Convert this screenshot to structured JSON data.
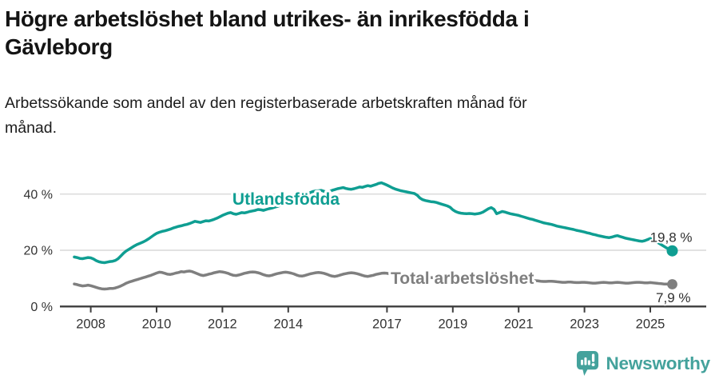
{
  "header": {
    "title": "Högre arbetslöshet bland utrikes- än inrikesfödda i Gävleborg",
    "title_lines": [
      "Högre arbetslöshet bland utrikes- än inrikesfödda i",
      "Gävleborg"
    ],
    "subtitle": "Arbetssökande som andel av den registerbaserade arbetskraften månad för månad.",
    "subtitle_lines": [
      "Arbetssökande som andel av den registerbaserade arbetskraften månad för",
      "månad."
    ]
  },
  "chart_data": {
    "type": "line",
    "x_start_decimal_year": 2007.5,
    "x_months_per_point": 1,
    "ylim": [
      0,
      46
    ],
    "grid": true,
    "legend_position": "inline-labels",
    "yticks": [
      {
        "v": 0,
        "label": "0 %"
      },
      {
        "v": 20,
        "label": "20 %"
      },
      {
        "v": 40,
        "label": "40 %"
      }
    ],
    "xticks": [
      {
        "year": 2008,
        "label": "2008"
      },
      {
        "year": 2010,
        "label": "2010"
      },
      {
        "year": 2012,
        "label": "2012"
      },
      {
        "year": 2014,
        "label": "2014"
      },
      {
        "year": 2017,
        "label": "2017"
      },
      {
        "year": 2019,
        "label": "2019"
      },
      {
        "year": 2021,
        "label": "2021"
      },
      {
        "year": 2023,
        "label": "2023"
      },
      {
        "year": 2025,
        "label": "2025"
      }
    ],
    "series": [
      {
        "name": "Utlandsfödda",
        "color": "#0f9e92",
        "end_label": "19,8 %",
        "values": [
          17.6,
          17.4,
          17.1,
          17.0,
          17.2,
          17.4,
          17.3,
          16.9,
          16.3,
          15.9,
          15.7,
          15.6,
          15.8,
          16.0,
          16.1,
          16.4,
          17.0,
          18.0,
          19.0,
          19.8,
          20.4,
          21.0,
          21.6,
          22.1,
          22.5,
          22.9,
          23.4,
          24.0,
          24.7,
          25.4,
          26.0,
          26.4,
          26.7,
          26.9,
          27.2,
          27.5,
          27.9,
          28.2,
          28.5,
          28.7,
          29.0,
          29.2,
          29.5,
          29.9,
          30.3,
          30.1,
          29.9,
          30.2,
          30.5,
          30.4,
          30.7,
          31.0,
          31.4,
          31.9,
          32.4,
          32.8,
          33.2,
          33.4,
          33.0,
          32.8,
          33.1,
          33.4,
          33.3,
          33.5,
          33.8,
          34.0,
          34.2,
          34.5,
          34.4,
          34.2,
          34.5,
          34.8,
          35.0,
          35.3,
          35.6,
          35.9,
          36.3,
          36.8,
          37.3,
          37.7,
          38.1,
          38.5,
          39.0,
          39.4,
          39.7,
          40.1,
          40.5,
          40.9,
          41.1,
          41.2,
          41.3,
          41.0,
          40.7,
          40.9,
          41.3,
          41.6,
          41.9,
          42.1,
          42.3,
          42.0,
          41.8,
          41.7,
          41.9,
          42.2,
          42.5,
          42.4,
          42.7,
          43.0,
          42.8,
          43.1,
          43.4,
          43.8,
          44.0,
          43.6,
          43.2,
          42.7,
          42.2,
          41.8,
          41.5,
          41.2,
          41.0,
          40.8,
          40.6,
          40.4,
          40.2,
          39.6,
          38.6,
          38.0,
          37.7,
          37.5,
          37.3,
          37.2,
          37.0,
          36.7,
          36.4,
          36.1,
          35.8,
          35.3,
          34.4,
          33.8,
          33.4,
          33.2,
          33.1,
          33.0,
          33.1,
          33.0,
          32.9,
          33.0,
          33.2,
          33.6,
          34.2,
          34.8,
          35.2,
          34.6,
          33.0,
          33.4,
          33.8,
          33.6,
          33.3,
          33.0,
          32.8,
          32.6,
          32.4,
          32.1,
          31.8,
          31.5,
          31.2,
          31.0,
          30.7,
          30.4,
          30.1,
          29.8,
          29.6,
          29.4,
          29.2,
          28.9,
          28.6,
          28.4,
          28.2,
          28.0,
          27.8,
          27.6,
          27.4,
          27.1,
          26.9,
          26.7,
          26.5,
          26.2,
          26.0,
          25.7,
          25.5,
          25.2,
          25.0,
          24.8,
          24.6,
          24.5,
          24.7,
          25.0,
          25.2,
          24.9,
          24.6,
          24.3,
          24.1,
          23.9,
          23.7,
          23.5,
          23.3,
          23.2,
          23.4,
          23.8,
          24.2,
          23.8,
          23.2,
          22.6,
          22.0,
          21.4,
          20.8,
          20.3,
          19.8
        ]
      },
      {
        "name": "Total arbetslöshet",
        "color": "#7f7f7f",
        "end_label": "7,9 %",
        "values": [
          8.0,
          7.8,
          7.5,
          7.3,
          7.4,
          7.6,
          7.4,
          7.1,
          6.8,
          6.5,
          6.3,
          6.2,
          6.3,
          6.4,
          6.4,
          6.6,
          6.9,
          7.3,
          7.8,
          8.3,
          8.7,
          9.0,
          9.3,
          9.6,
          9.9,
          10.2,
          10.5,
          10.8,
          11.1,
          11.5,
          11.9,
          12.2,
          12.1,
          11.8,
          11.5,
          11.4,
          11.6,
          11.9,
          12.1,
          12.4,
          12.3,
          12.5,
          12.6,
          12.4,
          12.0,
          11.6,
          11.2,
          11.0,
          11.2,
          11.5,
          11.7,
          12.0,
          12.2,
          12.4,
          12.3,
          12.1,
          11.8,
          11.4,
          11.1,
          11.0,
          11.2,
          11.5,
          11.8,
          12.0,
          12.2,
          12.3,
          12.2,
          12.0,
          11.7,
          11.3,
          11.0,
          10.9,
          11.1,
          11.4,
          11.7,
          11.9,
          12.1,
          12.2,
          12.1,
          11.9,
          11.6,
          11.2,
          10.9,
          10.8,
          11.0,
          11.3,
          11.6,
          11.8,
          12.0,
          12.1,
          12.0,
          11.8,
          11.5,
          11.1,
          10.8,
          10.7,
          10.9,
          11.2,
          11.5,
          11.7,
          11.9,
          12.0,
          11.9,
          11.7,
          11.4,
          11.1,
          10.8,
          10.7,
          10.9,
          11.1,
          11.4,
          11.6,
          11.8,
          11.9,
          11.8,
          11.6,
          11.3,
          11.0,
          10.8,
          10.7,
          10.8,
          11.0,
          11.2,
          11.3,
          11.4,
          11.3,
          11.1,
          10.9,
          10.7,
          10.5,
          10.3,
          10.2,
          10.3,
          10.4,
          10.4,
          10.3,
          10.2,
          10.1,
          10.0,
          9.9,
          9.8,
          9.7,
          9.6,
          9.6,
          9.7,
          9.7,
          9.6,
          9.6,
          9.7,
          9.9,
          10.2,
          10.5,
          10.8,
          11.0,
          10.9,
          10.8,
          10.8,
          10.7,
          10.5,
          10.3,
          10.2,
          10.1,
          10.0,
          9.9,
          9.7,
          9.6,
          9.4,
          9.3,
          9.2,
          9.1,
          9.0,
          8.9,
          8.9,
          9.0,
          9.0,
          8.9,
          8.8,
          8.7,
          8.6,
          8.6,
          8.7,
          8.7,
          8.6,
          8.5,
          8.5,
          8.6,
          8.6,
          8.5,
          8.4,
          8.3,
          8.3,
          8.4,
          8.5,
          8.6,
          8.5,
          8.4,
          8.4,
          8.5,
          8.6,
          8.5,
          8.4,
          8.3,
          8.3,
          8.4,
          8.5,
          8.6,
          8.6,
          8.5,
          8.4,
          8.4,
          8.5,
          8.4,
          8.3,
          8.2,
          8.1,
          8.0,
          8.0,
          7.9,
          7.9
        ]
      }
    ]
  },
  "footer": {
    "brand": "Newsworthy",
    "logo_icon": "newsworthy-bars-bubble-icon",
    "logo_color": "#44a29c"
  }
}
